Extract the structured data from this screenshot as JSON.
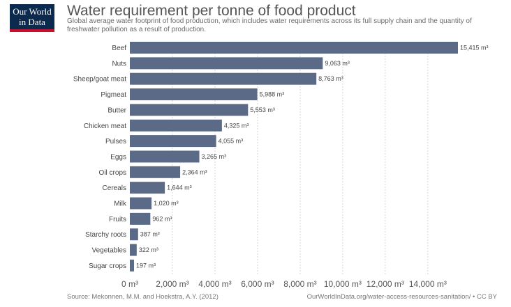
{
  "logo": {
    "line1": "Our World",
    "line2": "in Data",
    "navy": "#0c2a4d",
    "red": "#c8102e"
  },
  "header": {
    "title": "Water requirement per tonne of food product",
    "subtitle": "Global average water footprint of food production, which includes water requirements across its full supply chain and the quantity of freshwater pollution as a result of production."
  },
  "footer": {
    "source": "Source: Mekonnen, M.M. and Hoekstra, A.Y. (2012)",
    "url": "OurWorldInData.org/water-access-resources-sanitation/ • CC BY"
  },
  "chart_data": {
    "type": "bar",
    "orientation": "horizontal",
    "bar_color": "#5b6b87",
    "unit": "m³",
    "categories": [
      "Beef",
      "Nuts",
      "Sheep/goat meat",
      "Pigmeat",
      "Butter",
      "Chicken meat",
      "Pulses",
      "Eggs",
      "Oil crops",
      "Cereals",
      "Milk",
      "Fruits",
      "Starchy roots",
      "Vegetables",
      "Sugar crops"
    ],
    "values": [
      15415,
      9063,
      8763,
      5988,
      5553,
      4325,
      4055,
      3265,
      2364,
      1644,
      1020,
      962,
      387,
      322,
      197
    ],
    "value_labels": [
      "15,415 m³",
      "9,063 m³",
      "8,763 m³",
      "5,988 m³",
      "5,553 m³",
      "4,325 m³",
      "4,055 m³",
      "3,265 m³",
      "2,364 m³",
      "1,644 m³",
      "1,020 m³",
      "962 m³",
      "387 m³",
      "322 m³",
      "197 m³"
    ],
    "xticks": [
      0,
      2000,
      4000,
      6000,
      8000,
      10000,
      12000,
      14000
    ],
    "xtick_labels": [
      "0 m³",
      "2,000 m³",
      "4,000 m³",
      "6,000 m³",
      "8,000 m³",
      "10,000 m³",
      "12,000 m³",
      "14,000 m³"
    ],
    "xlim": [
      0,
      15415
    ],
    "grid": "vertical dotted"
  }
}
